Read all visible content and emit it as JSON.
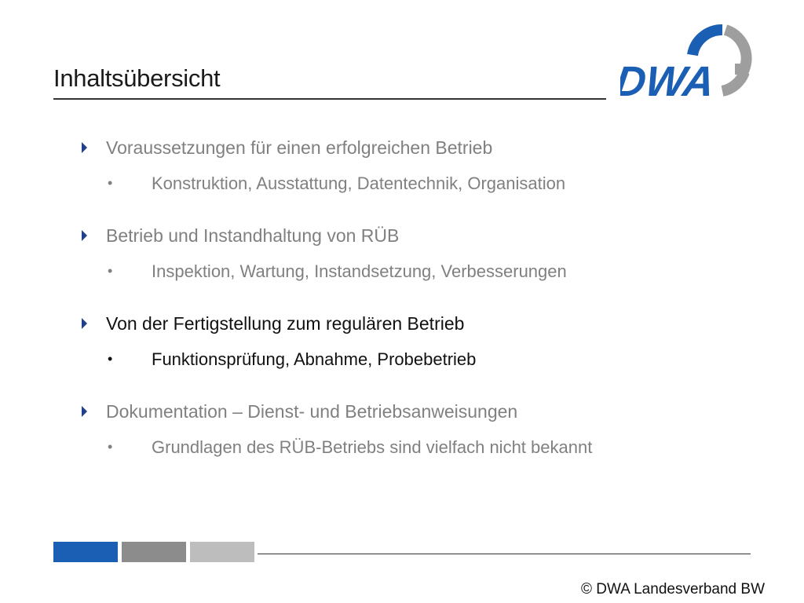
{
  "slide": {
    "title": "Inhaltsübersicht",
    "logo_text": "DWA",
    "copyright": "© DWA Landesverband BW"
  },
  "agenda": [
    {
      "main": "Voraussetzungen für einen erfolgreichen Betrieb",
      "sub": "Konstruktion, Ausstattung, Datentechnik, Organisation",
      "active": false
    },
    {
      "main": "Betrieb und Instandhaltung von RÜB",
      "sub": "Inspektion, Wartung, Instandsetzung, Verbesserungen",
      "active": false
    },
    {
      "main": "Von der Fertigstellung zum regulären Betrieb",
      "sub": "Funktionsprüfung, Abnahme, Probebetrieb",
      "active": true
    },
    {
      "main": "Dokumentation – Dienst- und Betriebsanweisungen",
      "sub": "Grundlagen des RÜB-Betriebs sind vielfach nicht bekannt",
      "active": false
    }
  ],
  "colors": {
    "brand_blue": "#1a5fb4",
    "arrow_blue": "#1f3f8f",
    "inactive_text": "#808080",
    "active_text": "#111111",
    "footer_bar_1": "#1a5fb4",
    "footer_bar_2": "#8c8c8c",
    "footer_bar_3": "#bdbdbd"
  },
  "bullet_symbol": "•"
}
